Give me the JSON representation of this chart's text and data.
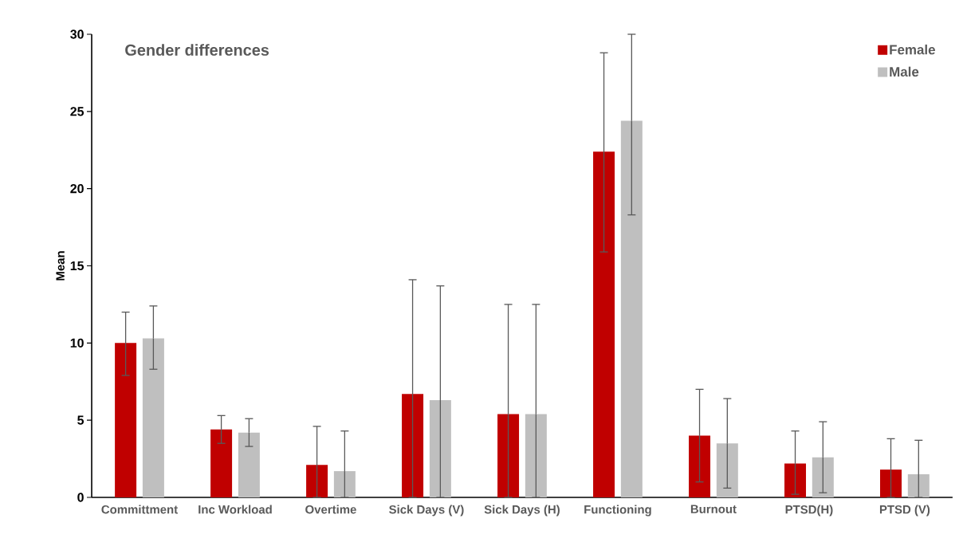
{
  "chart_data": {
    "type": "bar",
    "title": "Gender differences",
    "ylabel": "Mean",
    "categories": [
      "Committment",
      "Inc Workload",
      "Overtime",
      "Sick Days (V)",
      "Sick Days (H)",
      "Functioning",
      "Burnout",
      "PTSD(H)",
      "PTSD (V)"
    ],
    "series": [
      {
        "name": "Female",
        "color": "#c00000",
        "values": [
          10.0,
          4.4,
          2.1,
          6.7,
          5.4,
          22.4,
          4.0,
          2.2,
          1.8
        ],
        "errors": [
          [
            7.9,
            12.0
          ],
          [
            3.5,
            5.3
          ],
          [
            0,
            4.6
          ],
          [
            0,
            14.1
          ],
          [
            0,
            12.5
          ],
          [
            15.9,
            28.8
          ],
          [
            1.0,
            7.0
          ],
          [
            0.2,
            4.3
          ],
          [
            0,
            3.8
          ]
        ]
      },
      {
        "name": "Male",
        "color": "#bfbfbf",
        "values": [
          10.3,
          4.2,
          1.7,
          6.3,
          5.4,
          24.4,
          3.5,
          2.6,
          1.5
        ],
        "errors": [
          [
            8.3,
            12.4
          ],
          [
            3.3,
            5.1
          ],
          [
            0,
            4.3
          ],
          [
            0,
            13.7
          ],
          [
            0,
            12.5
          ],
          [
            18.3,
            30
          ],
          [
            0.6,
            6.4
          ],
          [
            0.3,
            4.9
          ],
          [
            0,
            3.7
          ]
        ]
      }
    ],
    "ylim": [
      0,
      30
    ],
    "yticks": [
      0,
      5,
      10,
      15,
      20,
      25,
      30
    ],
    "legend": "top right"
  }
}
